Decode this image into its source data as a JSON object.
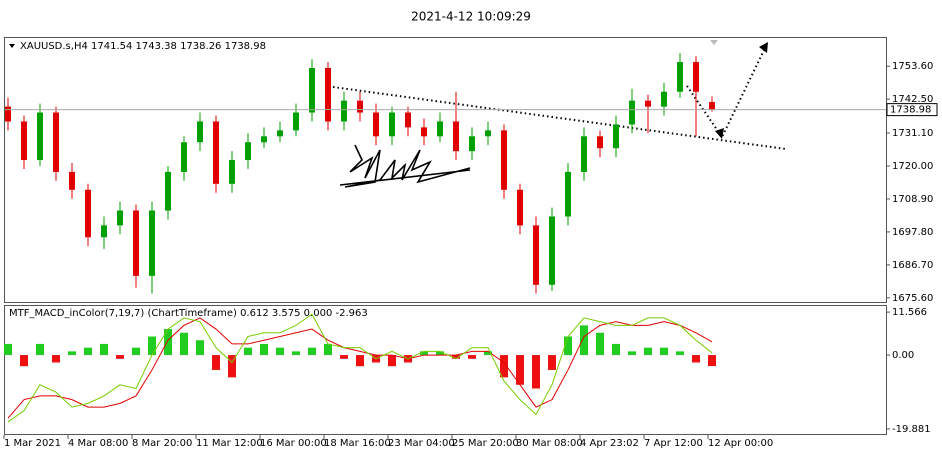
{
  "header": {
    "timestamp": "2021-4-12 10:09:29"
  },
  "chart_data": [
    {
      "type": "candlestick",
      "title": "XAUUSD.s,H4  1741.54 1743.38 1738.26 1738.98",
      "categories": [
        "1 Mar 2021",
        null,
        null,
        null,
        "4 Mar 08:00",
        null,
        null,
        null,
        "8 Mar 20:00",
        null,
        null,
        null,
        "11 Mar 12:00",
        null,
        null,
        null,
        "16 Mar 00:00",
        null,
        null,
        null,
        "18 Mar 16:00",
        null,
        null,
        null,
        "23 Mar 04:00",
        null,
        null,
        null,
        "25 Mar 20:00",
        null,
        null,
        null,
        "30 Mar 08:00",
        null,
        null,
        null,
        "4 Apr 23:02",
        null,
        null,
        null,
        "7 Apr 12:00",
        null,
        null,
        null,
        "12 Apr 00:00"
      ],
      "open": [
        1740,
        1735,
        1722,
        1738,
        1718,
        1712,
        1696,
        1700,
        1705,
        1683,
        1705,
        1718,
        1728,
        1735,
        1714,
        1722,
        1728,
        1730,
        1732,
        1738,
        1753,
        1735,
        1742,
        1738,
        1730,
        1738,
        1733,
        1730,
        1735,
        1725,
        1730,
        1732,
        1712,
        1700,
        1680,
        1703,
        1718,
        1730,
        1726,
        1734,
        1742,
        1740,
        1745,
        1755,
        1741.54
      ],
      "high": [
        1743,
        1737,
        1741,
        1740,
        1721,
        1714,
        1703,
        1708,
        1707,
        1708,
        1720,
        1730,
        1738,
        1737,
        1725,
        1731,
        1733,
        1735,
        1741,
        1756,
        1755,
        1745,
        1745,
        1741,
        1740,
        1740,
        1736,
        1738,
        1745,
        1733,
        1735,
        1734,
        1714,
        1703,
        1706,
        1721,
        1733,
        1732,
        1737,
        1746,
        1744,
        1748,
        1758,
        1757,
        1743.38
      ],
      "low": [
        1732,
        1719,
        1720,
        1715,
        1709,
        1693,
        1692,
        1697,
        1679,
        1677,
        1702,
        1715,
        1725,
        1711,
        1711,
        1719,
        1726,
        1728,
        1730,
        1735,
        1732,
        1732,
        1735,
        1727,
        1727,
        1730,
        1727,
        1728,
        1722,
        1722,
        1727,
        1709,
        1697,
        1677,
        1678,
        1700,
        1715,
        1723,
        1723,
        1731,
        1731,
        1737,
        1743,
        1730,
        1738.26
      ],
      "close": [
        1735,
        1722,
        1738,
        1718,
        1712,
        1696,
        1700,
        1705,
        1683,
        1705,
        1718,
        1728,
        1735,
        1714,
        1722,
        1728,
        1730,
        1732,
        1738,
        1753,
        1735,
        1742,
        1738,
        1730,
        1738,
        1733,
        1730,
        1735,
        1725,
        1730,
        1732,
        1712,
        1700,
        1680,
        1703,
        1718,
        1730,
        1726,
        1734,
        1742,
        1740,
        1745,
        1755,
        1745,
        1738.98
      ],
      "up_color": "#00a000",
      "down_color": "#e00000",
      "ylim": [
        1674.2,
        1763.1
      ],
      "yticks": [
        {
          "value": 1753.6,
          "label": "1753.60"
        },
        {
          "value": 1742.5,
          "label": "1742.50"
        },
        {
          "value": 1731.1,
          "label": "1731.10"
        },
        {
          "value": 1720,
          "label": "1720.00"
        },
        {
          "value": 1708.9,
          "label": "1708.90"
        },
        {
          "value": 1697.8,
          "label": "1697.80"
        },
        {
          "value": 1686.7,
          "label": "1686.70"
        },
        {
          "value": 1675.6,
          "label": "1675.60"
        }
      ]
    },
    {
      "type": "macd",
      "title": "MTF_MACD_inColor(7,19,7) (ChartTimeframe) 0.612 3.575 0.000 -2.963",
      "histogram": {
        "values": [
          3,
          -3,
          3,
          -2,
          1,
          2,
          3,
          -1,
          2,
          5,
          7,
          6,
          4,
          -4,
          -6,
          2,
          3,
          2,
          1,
          2,
          3,
          -1,
          -3,
          -2,
          -3,
          -2,
          1,
          1,
          -1,
          -1,
          1,
          -6,
          -8,
          -9,
          -4,
          5,
          8,
          6,
          3,
          1,
          2,
          2,
          1,
          -2,
          -2.963
        ],
        "up_color": "#22cc22",
        "down_color": "#ee1111"
      },
      "series": [
        {
          "color": "#e00000",
          "values": [
            -17,
            -12,
            -11,
            -11,
            -12,
            -14,
            -14,
            -13,
            -11,
            -4,
            4,
            8,
            10,
            7,
            3,
            3,
            4,
            5,
            6,
            7,
            4,
            2,
            1,
            0,
            0,
            -1,
            0,
            0,
            0,
            1,
            1,
            -2,
            -8,
            -14,
            -12,
            -4,
            5,
            8,
            9,
            8,
            8,
            9,
            8,
            6,
            3.575
          ]
        },
        {
          "color": "#77cc00",
          "values": [
            -18,
            -15,
            -8,
            -10,
            -14,
            -13,
            -11,
            -8,
            -9,
            0,
            7,
            10,
            9,
            2,
            -2,
            5,
            6,
            6,
            8,
            11,
            3,
            2,
            2,
            -1,
            1,
            -1,
            1,
            1,
            -1,
            2,
            2,
            -7,
            -12,
            -16,
            -8,
            5,
            10,
            9,
            8,
            8,
            10,
            10,
            8,
            4,
            0.612
          ]
        }
      ],
      "ylim": [
        -21.25,
        13.21
      ],
      "yticks": [
        11.566,
        {
          "value": 0,
          "label": "0.00"
        },
        -19.881
      ]
    }
  ]
}
